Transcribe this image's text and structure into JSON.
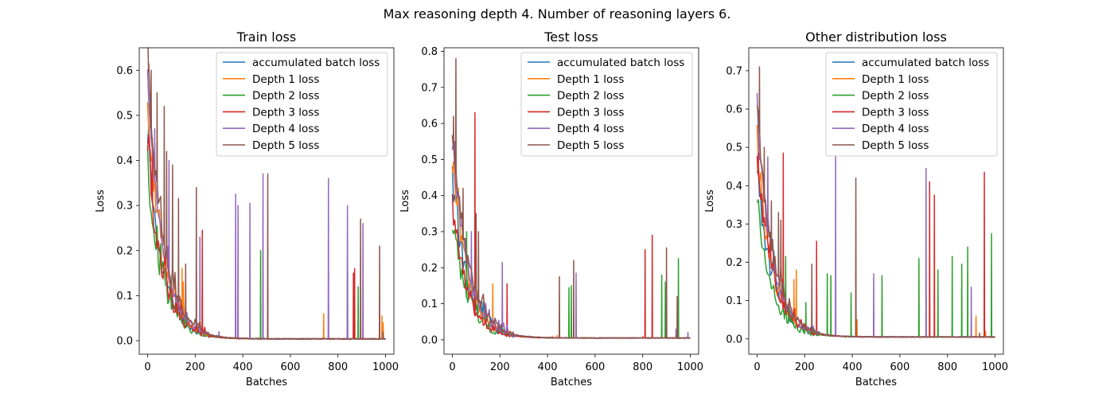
{
  "suptitle": "Max reasoning depth 4. Number of reasoning layers 6.",
  "series_legend": [
    {
      "name": "accumulated batch loss",
      "color": "#1f77b4"
    },
    {
      "name": "Depth 1 loss",
      "color": "#ff7f0e"
    },
    {
      "name": "Depth 2 loss",
      "color": "#2ca02c"
    },
    {
      "name": "Depth 3 loss",
      "color": "#d62728"
    },
    {
      "name": "Depth 4 loss",
      "color": "#9467bd"
    },
    {
      "name": "Depth 5 loss",
      "color": "#8c564b"
    }
  ],
  "chart_data": [
    {
      "type": "line",
      "title": "Train loss",
      "xlabel": "Batches",
      "ylabel": "Loss",
      "xlim": [
        -35,
        1035
      ],
      "ylim": [
        -0.03,
        0.65
      ],
      "xticks": [
        0,
        200,
        400,
        600,
        800,
        1000
      ],
      "yticks": [
        0.0,
        0.1,
        0.2,
        0.3,
        0.4,
        0.5,
        0.6
      ],
      "ytick_labels": [
        "0.0",
        "0.1",
        "0.2",
        "0.3",
        "0.4",
        "0.5",
        "0.6"
      ],
      "legend_position": "upper right",
      "curve": {
        "start": 0.45,
        "decay": 35,
        "floor": 0.004,
        "noise": 0.03
      },
      "series": [
        {
          "name": "accumulated batch loss",
          "color": "#1f77b4",
          "start": 0.43,
          "spikes": []
        },
        {
          "name": "Depth 1 loss",
          "color": "#ff7f0e",
          "start": 0.52,
          "spikes": [
            [
              145,
              0.16
            ],
            [
              150,
              0.13
            ],
            [
              160,
              0.1
            ],
            [
              740,
              0.06
            ],
            [
              985,
              0.055
            ],
            [
              990,
              0.04
            ]
          ]
        },
        {
          "name": "Depth 2 loss",
          "color": "#2ca02c",
          "start": 0.36,
          "spikes": [
            [
              95,
              0.12
            ],
            [
              120,
              0.08
            ],
            [
              475,
              0.2
            ],
            [
              840,
              0.24
            ],
            [
              885,
              0.12
            ]
          ]
        },
        {
          "name": "Depth 3 loss",
          "color": "#d62728",
          "start": 0.41,
          "spikes": [
            [
              20,
              0.45
            ],
            [
              230,
              0.245
            ],
            [
              865,
              0.15
            ],
            [
              870,
              0.16
            ]
          ]
        },
        {
          "name": "Depth 4 loss",
          "color": "#9467bd",
          "start": 0.59,
          "spikes": [
            [
              30,
              0.47
            ],
            [
              90,
              0.4
            ],
            [
              220,
              0.23
            ],
            [
              300,
              0.02
            ],
            [
              370,
              0.325
            ],
            [
              380,
              0.3
            ],
            [
              430,
              0.305
            ],
            [
              485,
              0.37
            ],
            [
              760,
              0.36
            ],
            [
              840,
              0.3
            ],
            [
              905,
              0.26
            ]
          ]
        },
        {
          "name": "Depth 5 loss",
          "color": "#8c564b",
          "start": 0.62,
          "spikes": [
            [
              5,
              0.615
            ],
            [
              15,
              0.6
            ],
            [
              40,
              0.55
            ],
            [
              70,
              0.52
            ],
            [
              80,
              0.42
            ],
            [
              105,
              0.39
            ],
            [
              130,
              0.315
            ],
            [
              160,
              0.17
            ],
            [
              205,
              0.34
            ],
            [
              505,
              0.37
            ],
            [
              895,
              0.27
            ],
            [
              975,
              0.21
            ],
            [
              990,
              0.02
            ]
          ]
        }
      ]
    },
    {
      "type": "line",
      "title": "Test loss",
      "xlabel": "Batches",
      "ylabel": "Loss",
      "xlim": [
        -35,
        1035
      ],
      "ylim": [
        -0.04,
        0.81
      ],
      "xticks": [
        0,
        200,
        400,
        600,
        800,
        1000
      ],
      "yticks": [
        0.0,
        0.1,
        0.2,
        0.3,
        0.4,
        0.5,
        0.6,
        0.7,
        0.8
      ],
      "ytick_labels": [
        "0.0",
        "0.1",
        "0.2",
        "0.3",
        "0.4",
        "0.5",
        "0.6",
        "0.7",
        "0.8"
      ],
      "legend_position": "upper right",
      "curve": {
        "start": 0.48,
        "decay": 35,
        "floor": 0.005,
        "noise": 0.04
      },
      "series": [
        {
          "name": "accumulated batch loss",
          "color": "#1f77b4",
          "start": 0.45,
          "spikes": []
        },
        {
          "name": "Depth 1 loss",
          "color": "#ff7f0e",
          "start": 0.5,
          "spikes": [
            [
              170,
              0.155
            ],
            [
              420,
              0.01
            ],
            [
              440,
              0.012
            ],
            [
              800,
              0.01
            ]
          ]
        },
        {
          "name": "Depth 2 loss",
          "color": "#2ca02c",
          "start": 0.34,
          "spikes": [
            [
              60,
              0.3
            ],
            [
              490,
              0.145
            ],
            [
              500,
              0.15
            ],
            [
              880,
              0.18
            ],
            [
              895,
              0.16
            ],
            [
              950,
              0.225
            ]
          ]
        },
        {
          "name": "Depth 3 loss",
          "color": "#d62728",
          "start": 0.37,
          "spikes": [
            [
              95,
              0.63
            ],
            [
              230,
              0.155
            ],
            [
              810,
              0.25
            ],
            [
              840,
              0.29
            ]
          ]
        },
        {
          "name": "Depth 4 loss",
          "color": "#9467bd",
          "start": 0.56,
          "spikes": [
            [
              10,
              0.55
            ],
            [
              80,
              0.3
            ],
            [
              210,
              0.215
            ],
            [
              520,
              0.185
            ],
            [
              940,
              0.03
            ],
            [
              990,
              0.02
            ]
          ]
        },
        {
          "name": "Depth 5 loss",
          "color": "#8c564b",
          "start": 0.6,
          "spikes": [
            [
              5,
              0.62
            ],
            [
              15,
              0.78
            ],
            [
              45,
              0.42
            ],
            [
              100,
              0.35
            ],
            [
              110,
              0.3
            ],
            [
              450,
              0.175
            ],
            [
              510,
              0.22
            ],
            [
              900,
              0.255
            ],
            [
              945,
              0.12
            ]
          ]
        }
      ]
    },
    {
      "type": "line",
      "title": "Other distribution loss",
      "xlabel": "Batches",
      "ylabel": "Loss",
      "xlim": [
        -35,
        1035
      ],
      "ylim": [
        -0.04,
        0.76
      ],
      "xticks": [
        0,
        200,
        400,
        600,
        800,
        1000
      ],
      "yticks": [
        0.0,
        0.1,
        0.2,
        0.3,
        0.4,
        0.5,
        0.6,
        0.7
      ],
      "ytick_labels": [
        "0.0",
        "0.1",
        "0.2",
        "0.3",
        "0.4",
        "0.5",
        "0.6",
        "0.7"
      ],
      "legend_position": "upper right",
      "curve": {
        "start": 0.47,
        "decay": 35,
        "floor": 0.005,
        "noise": 0.035
      },
      "series": [
        {
          "name": "accumulated batch loss",
          "color": "#1f77b4",
          "start": 0.44,
          "spikes": []
        },
        {
          "name": "Depth 1 loss",
          "color": "#ff7f0e",
          "start": 0.49,
          "spikes": [
            [
              155,
              0.155
            ],
            [
              165,
              0.18
            ],
            [
              420,
              0.05
            ],
            [
              920,
              0.06
            ],
            [
              960,
              0.02
            ]
          ]
        },
        {
          "name": "Depth 2 loss",
          "color": "#2ca02c",
          "start": 0.36,
          "spikes": [
            [
              120,
              0.215
            ],
            [
              205,
              0.095
            ],
            [
              295,
              0.17
            ],
            [
              310,
              0.165
            ],
            [
              395,
              0.12
            ],
            [
              525,
              0.165
            ],
            [
              680,
              0.21
            ],
            [
              760,
              0.18
            ],
            [
              820,
              0.215
            ],
            [
              860,
              0.195
            ],
            [
              885,
              0.24
            ],
            [
              985,
              0.275
            ]
          ]
        },
        {
          "name": "Depth 3 loss",
          "color": "#d62728",
          "start": 0.48,
          "spikes": [
            [
              5,
              0.485
            ],
            [
              110,
              0.485
            ],
            [
              250,
              0.255
            ],
            [
              725,
              0.41
            ],
            [
              745,
              0.375
            ],
            [
              955,
              0.435
            ]
          ]
        },
        {
          "name": "Depth 4 loss",
          "color": "#9467bd",
          "start": 0.57,
          "spikes": [
            [
              45,
              0.475
            ],
            [
              330,
              0.48
            ],
            [
              490,
              0.17
            ],
            [
              710,
              0.445
            ],
            [
              900,
              0.135
            ]
          ]
        },
        {
          "name": "Depth 5 loss",
          "color": "#8c564b",
          "start": 0.61,
          "spikes": [
            [
              10,
              0.71
            ],
            [
              30,
              0.5
            ],
            [
              60,
              0.36
            ],
            [
              90,
              0.33
            ],
            [
              100,
              0.31
            ],
            [
              230,
              0.195
            ],
            [
              415,
              0.42
            ],
            [
              935,
              0.015
            ]
          ]
        }
      ]
    }
  ]
}
